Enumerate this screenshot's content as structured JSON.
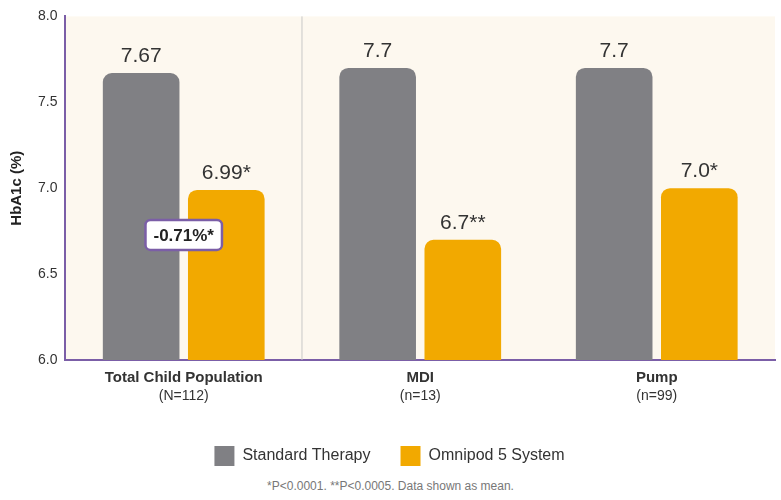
{
  "chart_data": {
    "type": "bar",
    "categories": [
      [
        "Total Child Population",
        "(N=112)"
      ],
      [
        "MDI",
        "(n=13)"
      ],
      [
        "Pump",
        "(n=99)"
      ]
    ],
    "series": [
      {
        "name": "Standard Therapy",
        "color": "#808084",
        "values": [
          7.67,
          7.7,
          7.7
        ],
        "value_labels": [
          "7.67",
          "7.7",
          "7.7"
        ]
      },
      {
        "name": "Omnipod 5 System",
        "color": "#f2a900",
        "values": [
          6.99,
          6.7,
          7.0
        ],
        "value_labels": [
          "6.99*",
          "6.7**",
          "7.0*"
        ]
      }
    ],
    "y_label": "HbA1c (%)",
    "ylim": [
      6.0,
      8.0
    ],
    "yticks": [
      {
        "value": 6,
        "label": "6.0"
      },
      {
        "value": 6.5,
        "label": "6.5"
      },
      {
        "value": 7,
        "label": "7.0"
      },
      {
        "value": 7.5,
        "label": "7.5"
      },
      {
        "value": 8,
        "label": "8.0"
      }
    ],
    "grid": false,
    "legend": "bottom",
    "data_labels": true,
    "annotation": "-0.71%*",
    "footnote": "*P<0.0001. **P<0.0005. Data shown as mean."
  }
}
